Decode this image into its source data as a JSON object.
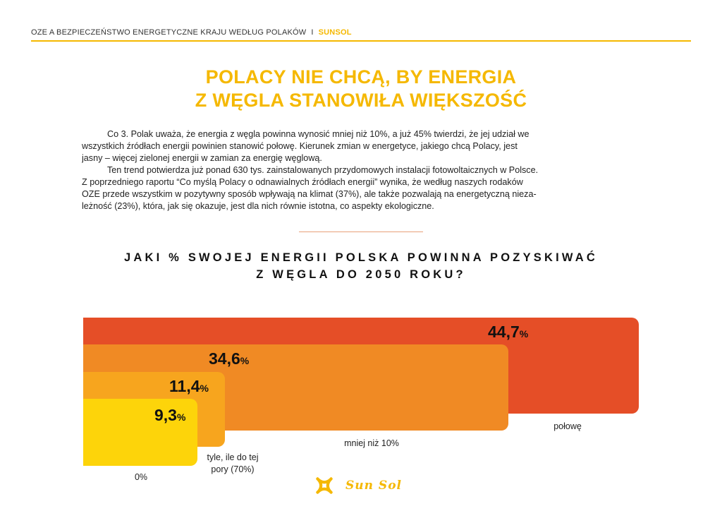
{
  "header": {
    "section": "OZE A BEZPIECZEŃSTWO ENERGETYCZNE KRAJU WEDŁUG POLAKÓW",
    "separator": "I",
    "brand": "SUNSOL"
  },
  "title": {
    "line1": "POLACY NIE CHCĄ, BY ENERGIA",
    "line2": "Z WĘGLA STANOWIŁA WIĘKSZOŚĆ"
  },
  "body": {
    "lines": [
      "Co 3. Polak uważa, że energia z węgla powinna wynosić mniej niż 10%, a już 45% twierdzi, że jej udział we",
      "wszystkich źródłach energii powinien stanowić połowę. Kierunek zmian w energetyce, jakiego chcą Polacy, jest",
      "jasny – więcej zielonej energii w zamian za energię węglową.",
      "Ten trend potwierdza już ponad 630 tys. zainstalowanych przydomowych instalacji fotowoltaicznych w Polsce.",
      "Z poprzedniego raportu “Co myślą Polacy o odnawialnych źródłach energii” wynika, że według naszych rodaków",
      "OZE przede wszystkim w pozytywny sposób wpływają na klimat (37%), ale także pozwalają na energetyczną nieza-",
      "leżność (23%), która, jak się okazuje, jest dla nich równie istotna, co aspekty ekologiczne."
    ]
  },
  "question": {
    "line1": "JAKI % SWOJEJ ENERGII POLSKA POWINNA POZYSKIWAĆ",
    "line2": "Z WĘGLA DO 2050 ROKU?"
  },
  "chart_data": {
    "type": "bar",
    "orientation": "horizontal-stacked-overlap",
    "categories": [
      "połowę",
      "mniej niż 10%",
      "tyle, ile do tej pory (70%)",
      "0%"
    ],
    "values": [
      44.7,
      34.6,
      11.4,
      9.3
    ],
    "value_labels": [
      "44,7",
      "34,6",
      "11,4",
      "9,3"
    ],
    "unit": "%",
    "colors": [
      "#e54e27",
      "#f08a24",
      "#f7a51e",
      "#fdd40a"
    ],
    "labels": {
      "b1": "połowę",
      "b2": "mniej niż 10%",
      "b3_line1": "tyle, ile do tej",
      "b3_line2": "pory (70%)",
      "b4": "0%"
    }
  },
  "logo": {
    "text": "Sun Sol",
    "icon": "sun-sol-logo-icon",
    "color": "#f5b800"
  }
}
